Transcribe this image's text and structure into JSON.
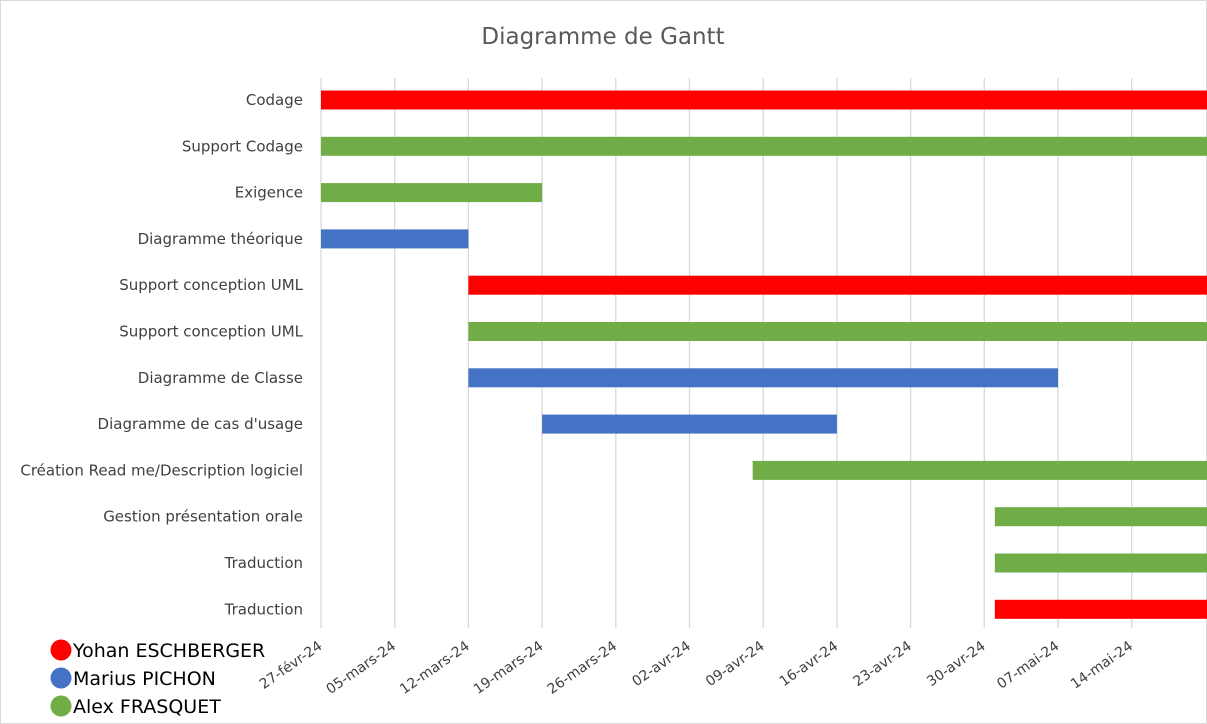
{
  "chart_data": {
    "type": "bar",
    "orientation": "horizontal",
    "stacked_gantt": true,
    "title": "Diagramme de Gantt",
    "x_axis": {
      "type": "date",
      "range": [
        "2024-02-27",
        "2024-05-21"
      ],
      "tick_labels": [
        "27-févr-24",
        "05-mars-24",
        "12-mars-24",
        "19-mars-24",
        "26-mars-24",
        "02-avr-24",
        "09-avr-24",
        "16-avr-24",
        "23-avr-24",
        "30-avr-24",
        "07-mai-24",
        "14-mai-24"
      ],
      "tick_dates": [
        "2024-02-27",
        "2024-03-05",
        "2024-03-12",
        "2024-03-19",
        "2024-03-26",
        "2024-04-02",
        "2024-04-09",
        "2024-04-16",
        "2024-04-23",
        "2024-04-30",
        "2024-05-07",
        "2024-05-14"
      ],
      "gridlines": true
    },
    "legend_position": "bottom-left",
    "series": [
      {
        "name": "Yohan ESCHBERGER",
        "color": "#FF0000"
      },
      {
        "name": "Marius PICHON",
        "color": "#4472C4"
      },
      {
        "name": "Alex FRASQUET",
        "color": "#70AD47"
      }
    ],
    "tasks": [
      {
        "label": "Codage",
        "start": "2024-02-27",
        "end": "2024-05-24",
        "person": "Yohan ESCHBERGER",
        "color": "#FF0000"
      },
      {
        "label": "Support Codage",
        "start": "2024-02-27",
        "end": "2024-05-24",
        "person": "Alex FRASQUET",
        "color": "#70AD47"
      },
      {
        "label": "Exigence",
        "start": "2024-02-27",
        "end": "2024-03-19",
        "person": "Alex FRASQUET",
        "color": "#70AD47"
      },
      {
        "label": "Diagramme théorique",
        "start": "2024-02-27",
        "end": "2024-03-12",
        "person": "Marius PICHON",
        "color": "#4472C4"
      },
      {
        "label": "Support conception UML",
        "start": "2024-03-12",
        "end": "2024-05-24",
        "person": "Yohan ESCHBERGER",
        "color": "#FF0000"
      },
      {
        "label": "Support conception UML",
        "start": "2024-03-12",
        "end": "2024-05-24",
        "person": "Alex FRASQUET",
        "color": "#70AD47"
      },
      {
        "label": "Diagramme de Classe",
        "start": "2024-03-12",
        "end": "2024-05-07",
        "person": "Marius PICHON",
        "color": "#4472C4"
      },
      {
        "label": "Diagramme de cas d'usage",
        "start": "2024-03-19",
        "end": "2024-04-16",
        "person": "Marius PICHON",
        "color": "#4472C4"
      },
      {
        "label": "Création Read me/Description logiciel",
        "start": "2024-04-08",
        "end": "2024-05-24",
        "person": "Alex FRASQUET",
        "color": "#70AD47"
      },
      {
        "label": "Gestion présentation orale",
        "start": "2024-05-01",
        "end": "2024-05-24",
        "person": "Alex FRASQUET",
        "color": "#70AD47"
      },
      {
        "label": "Traduction",
        "start": "2024-05-01",
        "end": "2024-05-24",
        "person": "Alex FRASQUET",
        "color": "#70AD47"
      },
      {
        "label": "Traduction",
        "start": "2024-05-01",
        "end": "2024-05-24",
        "person": "Yohan ESCHBERGER",
        "color": "#FF0000"
      }
    ]
  }
}
